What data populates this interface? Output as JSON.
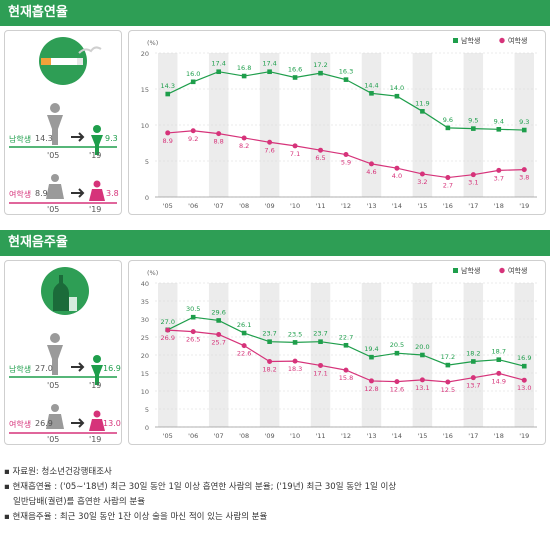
{
  "sections": [
    {
      "title": "현재흡연율",
      "summary": {
        "male": {
          "label": "남학생",
          "from": "14.3",
          "to": "9.3"
        },
        "female": {
          "label": "여학생",
          "from": "8.9",
          "to": "3.8"
        },
        "year_from": "'05",
        "year_to": "'19"
      }
    },
    {
      "title": "현재음주율",
      "summary": {
        "male": {
          "label": "남학생",
          "from": "27.0",
          "to": "16.9"
        },
        "female": {
          "label": "여학생",
          "from": "26.9",
          "to": "13.0"
        },
        "year_from": "'05",
        "year_to": "'19"
      }
    }
  ],
  "colors": {
    "male": "#1e9e4b",
    "female": "#d6337a",
    "header": "#2e9e55",
    "band": "#ececec"
  },
  "chart_data": [
    {
      "type": "line",
      "ylabel": "(%)",
      "ylim": [
        0,
        20
      ],
      "yticks": [
        "0",
        "5",
        "10",
        "15",
        "20"
      ],
      "categories": [
        "'05",
        "'06",
        "'07",
        "'08",
        "'09",
        "'10",
        "'11",
        "'12",
        "'13",
        "'14",
        "'15",
        "'16",
        "'17",
        "'18",
        "'19"
      ],
      "legend_position": "top-right",
      "series": [
        {
          "name": "남학생",
          "values": [
            14.3,
            16.0,
            17.4,
            16.8,
            17.4,
            16.6,
            17.2,
            16.3,
            14.4,
            14.0,
            11.9,
            9.6,
            9.5,
            9.4,
            9.3
          ]
        },
        {
          "name": "여학생",
          "values": [
            8.9,
            9.2,
            8.8,
            8.2,
            7.6,
            7.1,
            6.5,
            5.9,
            4.6,
            4.0,
            3.2,
            2.7,
            3.1,
            3.7,
            3.8
          ]
        }
      ]
    },
    {
      "type": "line",
      "ylabel": "(%)",
      "ylim": [
        0,
        40
      ],
      "yticks": [
        "0",
        "5",
        "10",
        "15",
        "20",
        "25",
        "30",
        "35",
        "40"
      ],
      "categories": [
        "'05",
        "'06",
        "'07",
        "'08",
        "'09",
        "'10",
        "'11",
        "'12",
        "'13",
        "'14",
        "'15",
        "'16",
        "'17",
        "'18",
        "'19"
      ],
      "legend_position": "top-right",
      "series": [
        {
          "name": "남학생",
          "values": [
            27.0,
            30.5,
            29.6,
            26.1,
            23.7,
            23.5,
            23.7,
            22.7,
            19.4,
            20.5,
            20.0,
            17.2,
            18.2,
            18.7,
            16.9
          ]
        },
        {
          "name": "여학생",
          "values": [
            26.9,
            26.5,
            25.7,
            22.6,
            18.2,
            18.3,
            17.1,
            15.8,
            12.8,
            12.6,
            13.1,
            12.5,
            13.7,
            14.9,
            13.0
          ]
        }
      ]
    }
  ],
  "notes": [
    "자료원: 청소년건강행태조사",
    "현재흡연율 : ('05∼'18년) 최근 30일 동안 1일 이상 흡연한 사람의 분율; ('19년) 최근 30일 동안 1일 이상",
    "일반담배(궐련)를 흡연한 사람의 분율",
    "현재음주율 : 최근 30일 동안 1잔 이상 술을 마신 적이 있는 사람의 분율"
  ]
}
